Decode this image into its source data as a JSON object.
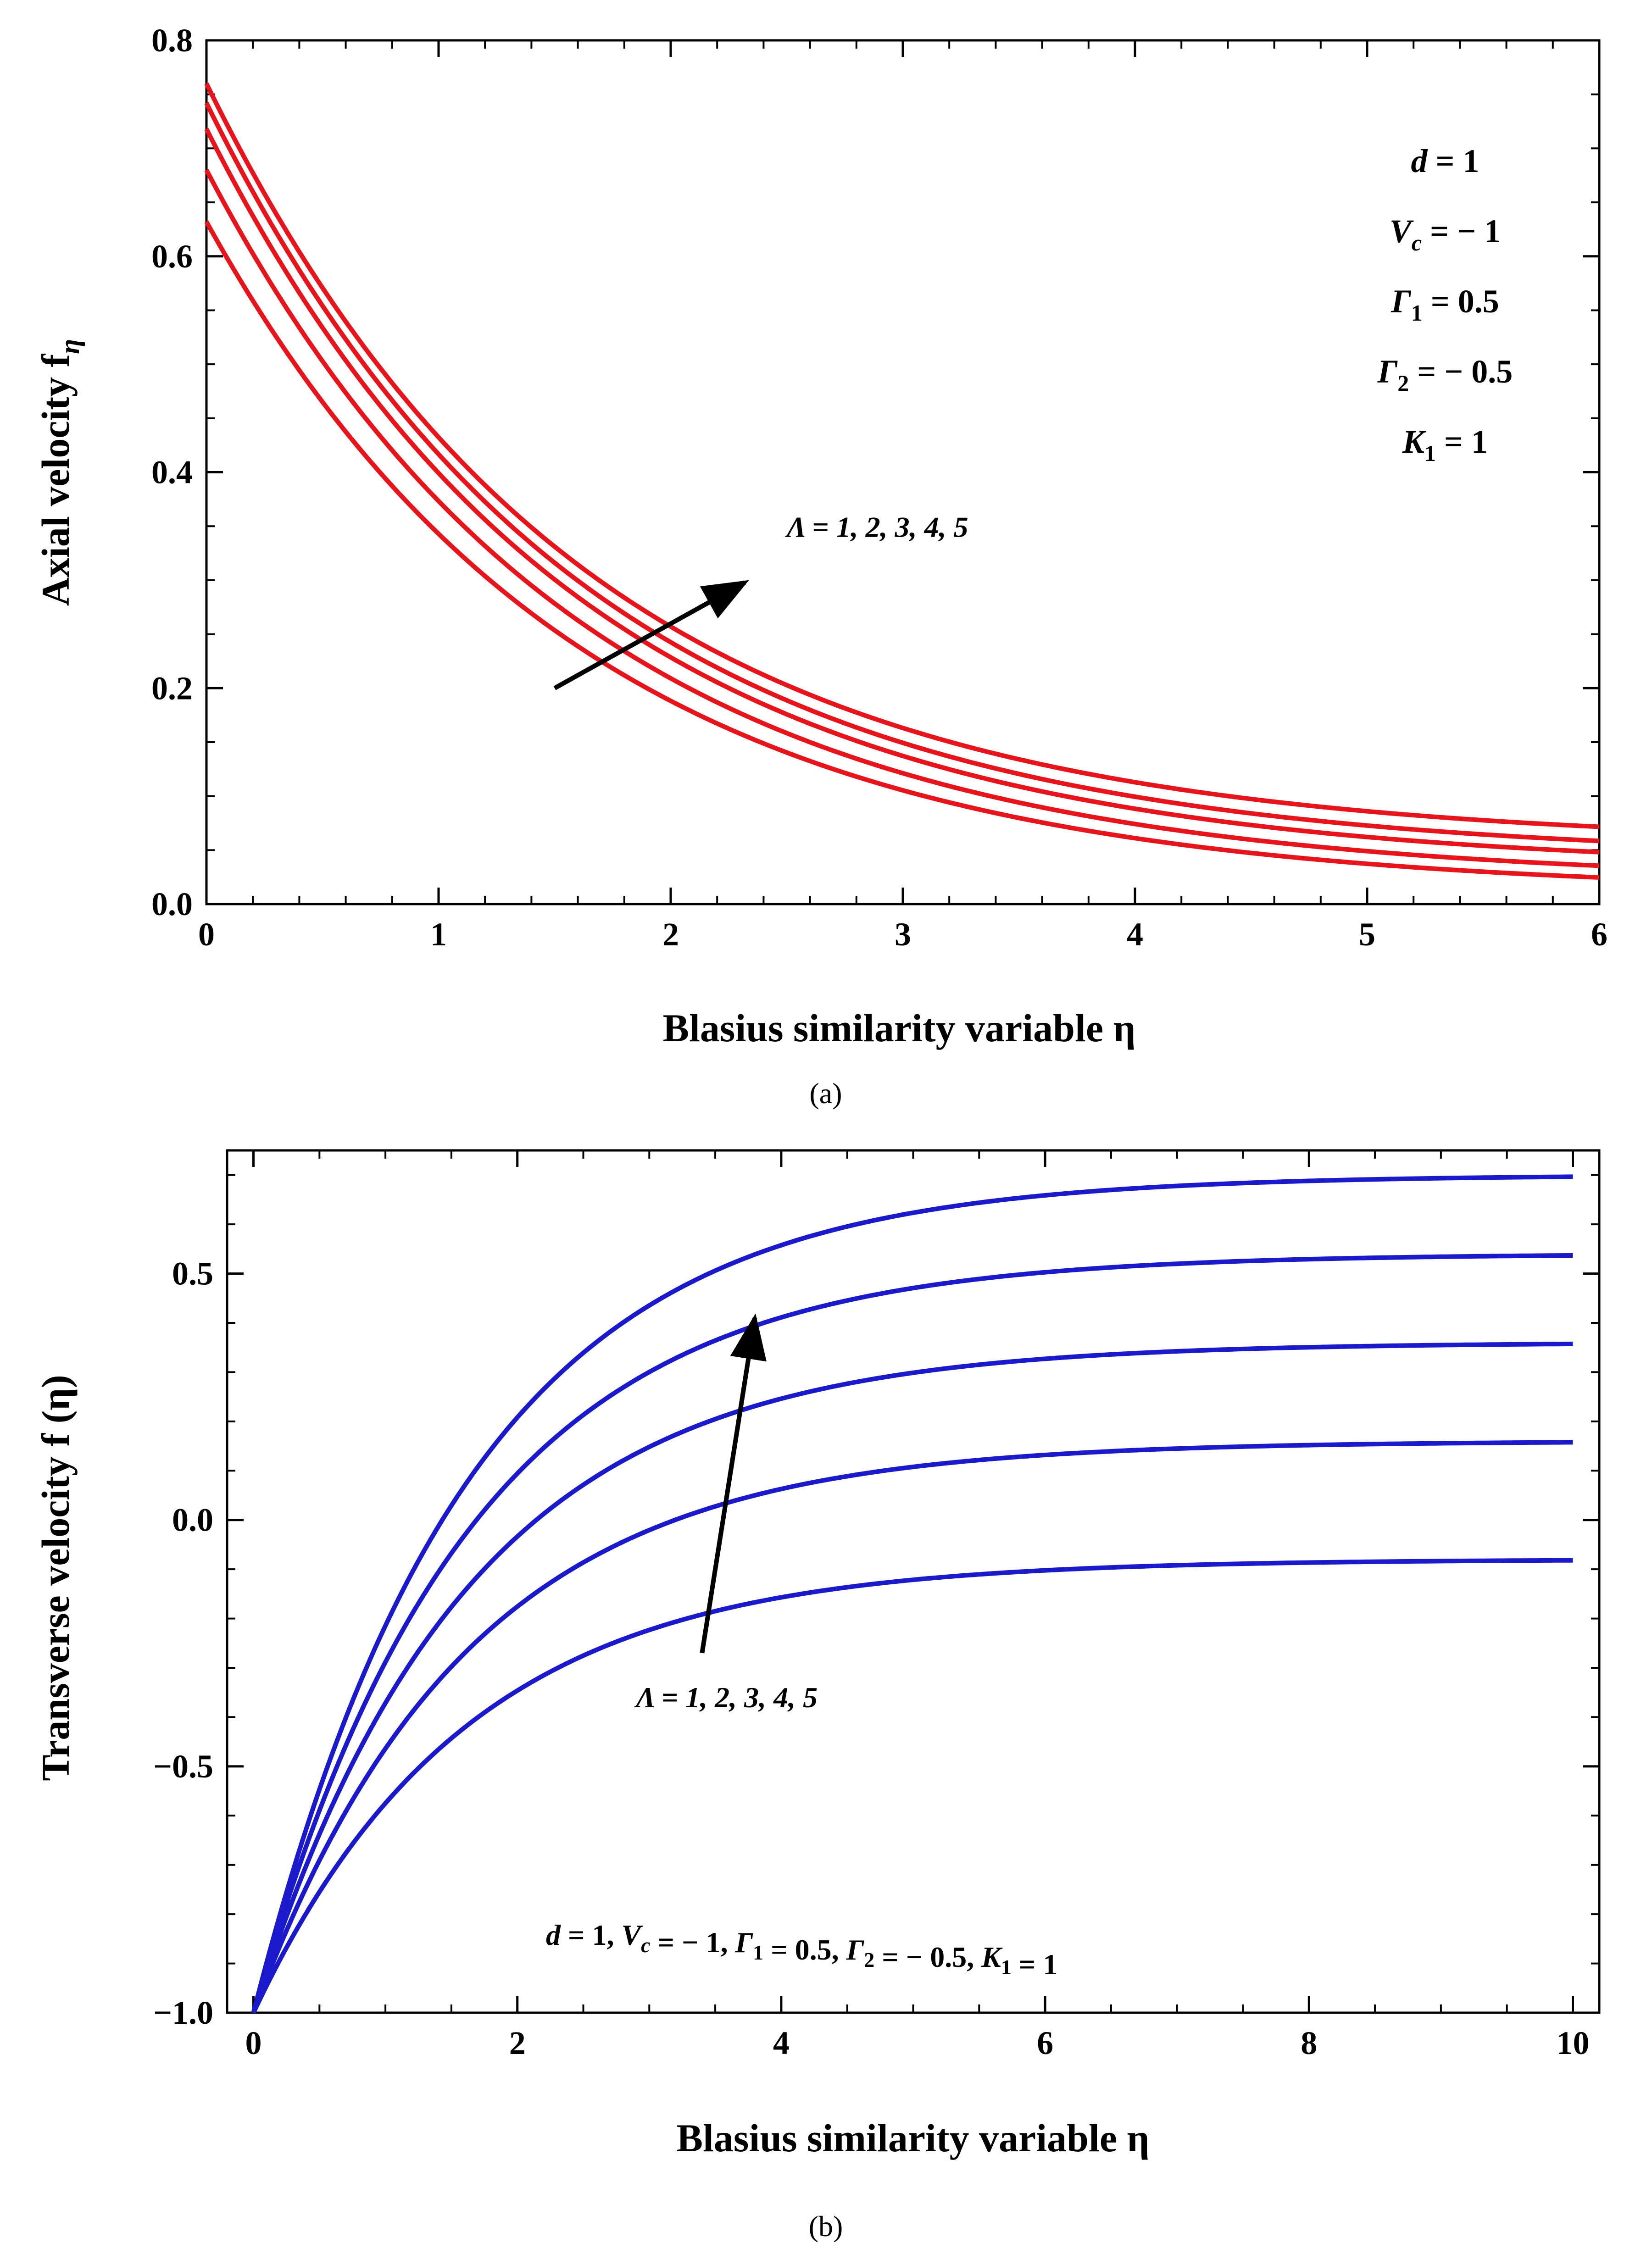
{
  "chart_data": [
    {
      "type": "line",
      "panel_label": "(a)",
      "xlabel": "Blasius similarity variable η",
      "ylabel": "Axial velocity f",
      "ylabel_subscript": "η",
      "xlim": [
        0,
        6
      ],
      "ylim": [
        0,
        0.8
      ],
      "xticks": [
        "0",
        "1",
        "2",
        "3",
        "4",
        "5",
        "6"
      ],
      "xtick_values": [
        0,
        1,
        2,
        3,
        4,
        5,
        6
      ],
      "yticks": [
        "0.0",
        "0.2",
        "0.4",
        "0.6",
        "0.8"
      ],
      "ytick_values": [
        0,
        0.2,
        0.4,
        0.6,
        0.8
      ],
      "line_color": "#e8141c",
      "series": [
        {
          "name": "Λ = 1",
          "start": 0.632,
          "end": 0.01
        },
        {
          "name": "Λ = 2",
          "start": 0.68,
          "end": 0.02
        },
        {
          "name": "Λ = 3",
          "start": 0.718,
          "end": 0.032
        },
        {
          "name": "Λ = 4",
          "start": 0.742,
          "end": 0.042
        },
        {
          "name": "Λ = 5",
          "start": 0.76,
          "end": 0.055
        }
      ],
      "annotation": {
        "text": "Λ  = 1, 2, 3, 4, 5",
        "arrow_from": [
          1.5,
          0.2
        ],
        "arrow_to": [
          2.32,
          0.298
        ]
      },
      "params": [
        "d = 1",
        "V",
        "Γ",
        "Γ",
        "K"
      ],
      "param_lines": [
        {
          "main": "d",
          "sub": "",
          "rest": " = 1"
        },
        {
          "main": "V",
          "sub": "c",
          "rest": " = − 1"
        },
        {
          "main": "Γ",
          "sub": "1",
          "rest": " = 0.5"
        },
        {
          "main": "Γ",
          "sub": "2",
          "rest": " = − 0.5"
        },
        {
          "main": "K",
          "sub": "1",
          "rest": " = 1"
        }
      ]
    },
    {
      "type": "line",
      "panel_label": "(b)",
      "xlabel": "Blasius similarity variable η",
      "ylabel": "Transverse  velocity  f (η)",
      "xlim": [
        -0.2,
        10.2
      ],
      "ylim": [
        -1.0,
        0.75
      ],
      "xticks": [
        "0",
        "2",
        "4",
        "6",
        "8",
        "10"
      ],
      "xtick_values": [
        0,
        2,
        4,
        6,
        8,
        10
      ],
      "yticks": [
        "−1.0",
        "−0.5",
        "0.0",
        "0.5"
      ],
      "ytick_values": [
        -1.0,
        -0.5,
        0.0,
        0.5
      ],
      "line_color": "#1a1acc",
      "series": [
        {
          "name": "Λ = 1",
          "start": -1.0,
          "end": -0.08
        },
        {
          "name": "Λ = 2",
          "start": -1.0,
          "end": 0.16
        },
        {
          "name": "Λ = 3",
          "start": -1.0,
          "end": 0.36
        },
        {
          "name": "Λ = 4",
          "start": -1.0,
          "end": 0.54
        },
        {
          "name": "Λ = 5",
          "start": -1.0,
          "end": 0.7
        }
      ],
      "annotation": {
        "text": "Λ  = 1, 2, 3, 4, 5",
        "arrow_from": [
          3.4,
          -0.27
        ],
        "arrow_to": [
          3.8,
          0.41
        ]
      },
      "params_text": "d = 1, V",
      "param_line": [
        {
          "t": "d",
          "s": ""
        },
        {
          "t": " = 1, ",
          "s": ""
        },
        {
          "t": "V",
          "s": "c"
        },
        {
          "t": " = − 1, ",
          "s": ""
        },
        {
          "t": "Γ",
          "s": "1"
        },
        {
          "t": " = 0.5, ",
          "s": ""
        },
        {
          "t": "Γ",
          "s": "2"
        },
        {
          "t": " = − 0.5, ",
          "s": ""
        },
        {
          "t": "K",
          "s": "1"
        },
        {
          "t": " = 1",
          "s": ""
        }
      ]
    }
  ]
}
